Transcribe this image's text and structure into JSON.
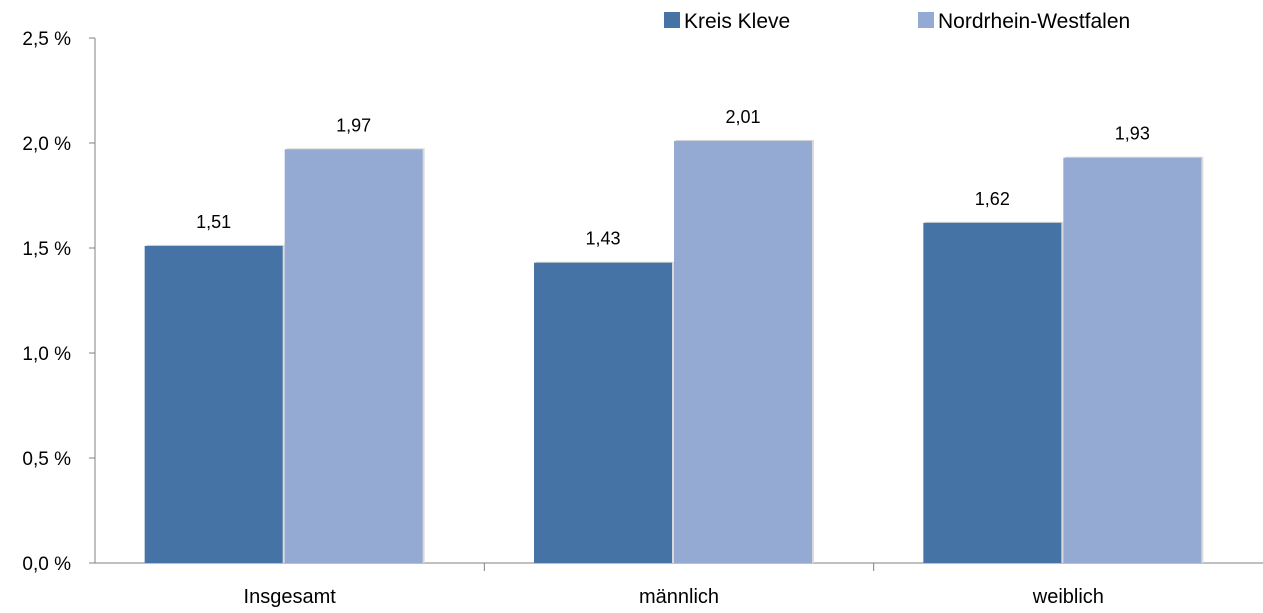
{
  "chart_data": {
    "type": "bar",
    "categories": [
      "Insgesamt",
      "männlich",
      "weiblich"
    ],
    "series": [
      {
        "name": "Kreis Kleve",
        "values": [
          1.51,
          1.43,
          1.62
        ],
        "labels": [
          "1,51",
          "1,43",
          "1,62"
        ],
        "color": "#4673A6"
      },
      {
        "name": "Nordrhein-Westfalen",
        "values": [
          1.97,
          2.01,
          1.93
        ],
        "labels": [
          "1,97",
          "2,01",
          "1,93"
        ],
        "color": "#95AAD2"
      }
    ],
    "ylim": [
      0,
      2.5
    ],
    "yticks": [
      0,
      0.5,
      1.0,
      1.5,
      2.0,
      2.5
    ],
    "ytick_labels": [
      "0,0 %",
      "0,5 %",
      "1,0 %",
      "1,5 %",
      "2,0 %",
      "2,5 %"
    ],
    "grid": false,
    "legend_position": "top-right",
    "title": "",
    "xlabel": "",
    "ylabel": ""
  }
}
